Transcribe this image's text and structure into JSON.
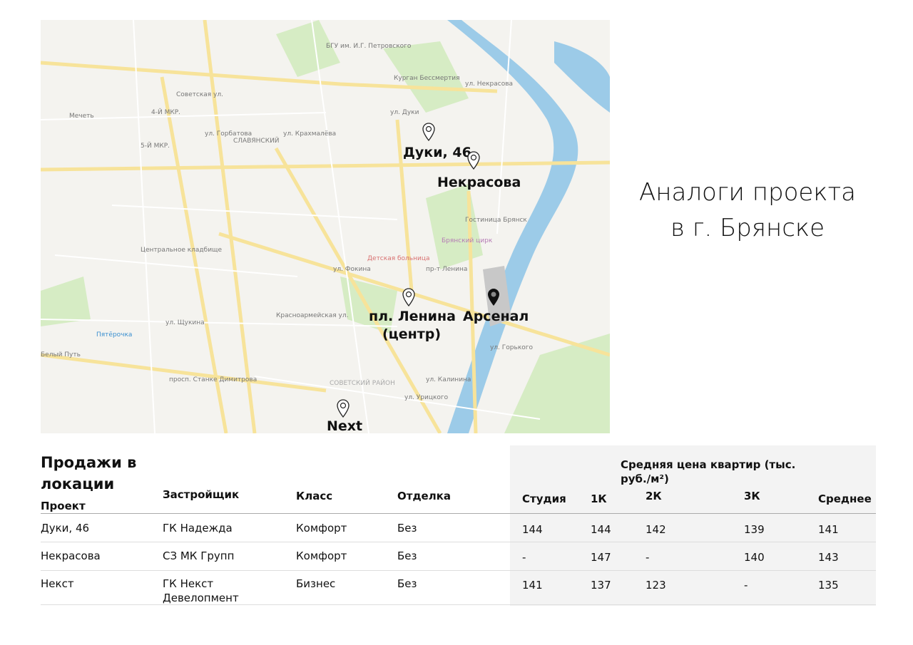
{
  "title": {
    "line1": "Аналоги проекта",
    "line2": "в г. Брянске"
  },
  "map": {
    "markers": [
      {
        "label": "Дуки, 46",
        "icon": "map-pin-outline-icon"
      },
      {
        "label": "Некрасова",
        "icon": "map-pin-outline-icon"
      },
      {
        "label": "пл. Ленина",
        "label2": "(центр)",
        "icon": "map-pin-outline-icon"
      },
      {
        "label": "Арсенал",
        "icon": "map-pin-filled-icon"
      },
      {
        "label": "Next",
        "icon": "map-pin-outline-icon"
      }
    ],
    "places": [
      "БГУ им. И.Г. Петровского",
      "Курган Бессмертия",
      "Гостиница Брянск",
      "Брянский цирк",
      "Детская больница",
      "Центральное кладбище",
      "Пятёрочка",
      "Мечеть",
      "СЛАВЯНСКИЙ",
      "СОВЕТСКИЙ РАЙОН",
      "Белый Путь",
      "4-Й МКР.",
      "5-Й МКР."
    ],
    "streets": [
      "Советская ул.",
      "ул. Горбатова",
      "ул. Крахмалёва",
      "Красноармейская ул.",
      "ул. Фокина",
      "ул. Горького",
      "ул. Калинина",
      "пр-т Ленина",
      "ул. Щукина",
      "ул. Дуки",
      "ул. Некрасова",
      "ул. Урицкого",
      "просп. Станке Димитрова"
    ]
  },
  "table": {
    "section_title": "Продажи в локации",
    "price_group": "Средняя цена квартир (тыс. руб./м²)",
    "columns": [
      "Проект",
      "Застройщик",
      "Класс",
      "Отделка",
      "Студия",
      "1К",
      "2К",
      "3К",
      "Среднее"
    ],
    "rows": [
      [
        "Дуки, 46",
        "ГК Надежда",
        "Комфорт",
        "Без",
        "144",
        "144",
        "142",
        "139",
        "141"
      ],
      [
        "Некрасова",
        "СЗ МК Групп",
        "Комфорт",
        "Без",
        "-",
        "147",
        "-",
        "140",
        "143"
      ],
      [
        "Некст",
        "ГК Некст Девелопмент",
        "Бизнес",
        "Без",
        "141",
        "137",
        "123",
        "-",
        "135"
      ]
    ]
  },
  "colors": {
    "map_bg": "#f4f3ef",
    "road": "#f7e39a",
    "park": "#d6ecc4",
    "river": "#9ccbe8",
    "table_shade": "#f3f3f3"
  }
}
